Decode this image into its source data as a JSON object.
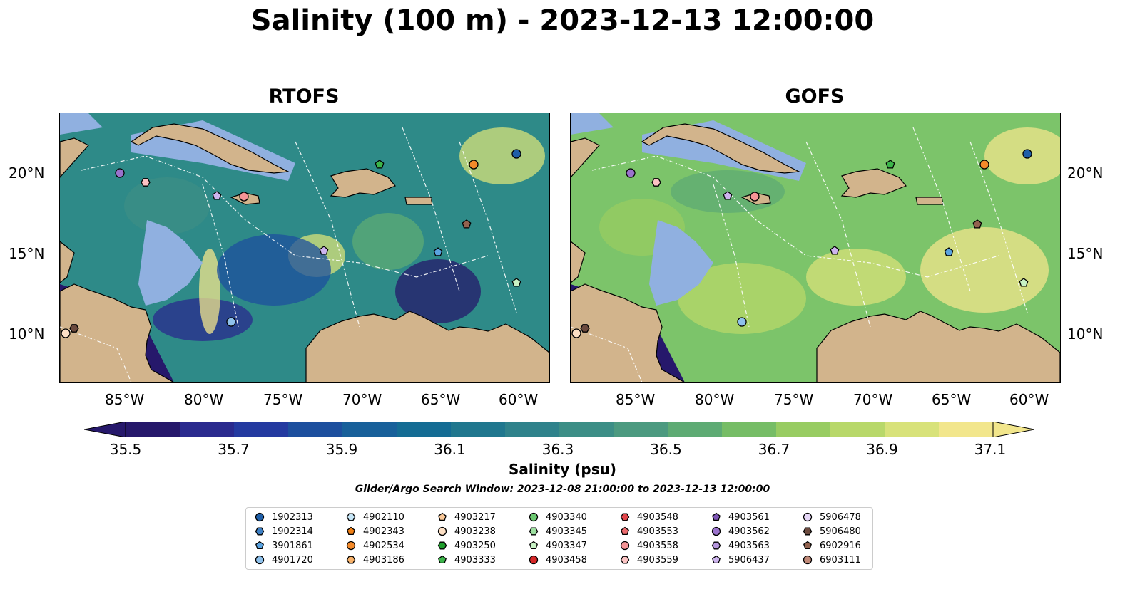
{
  "title": "Salinity (100 m) - 2023-12-13 12:00:00",
  "panels": [
    {
      "title": "RTOFS",
      "bg": "#2e8a88"
    },
    {
      "title": "GOFS",
      "bg": "#7cc46a"
    }
  ],
  "x_ticks": [
    "85°W",
    "80°W",
    "75°W",
    "70°W",
    "65°W",
    "60°W"
  ],
  "y_ticks": [
    "20°N",
    "15°N",
    "10°N"
  ],
  "colorbar": {
    "label": "Salinity (psu)",
    "ticks": [
      "35.5",
      "35.7",
      "35.9",
      "36.1",
      "36.3",
      "36.5",
      "36.7",
      "36.9",
      "37.1"
    ],
    "colors": [
      "#26186b",
      "#2a2a8e",
      "#243aa0",
      "#1d4f9e",
      "#18609a",
      "#146c94",
      "#20778e",
      "#2f828b",
      "#3c8e86",
      "#4c9a80",
      "#5eab74",
      "#76bd66",
      "#98cc62",
      "#b8d86a",
      "#d8e27a",
      "#f2e68c"
    ]
  },
  "search_window": "Glider/Argo Search Window: 2023-12-08 21:00:00 to 2023-12-13 12:00:00",
  "legend": [
    {
      "label": "1902313",
      "color": "#1f5fa8",
      "shape": "circle"
    },
    {
      "label": "1902314",
      "color": "#3d7fc4",
      "shape": "hexagon"
    },
    {
      "label": "3901861",
      "color": "#5aa3e0",
      "shape": "pentagon"
    },
    {
      "label": "4901720",
      "color": "#8ec1ec",
      "shape": "circle"
    },
    {
      "label": "4902110",
      "color": "#c6e6f7",
      "shape": "hexagon"
    },
    {
      "label": "4902343",
      "color": "#f07f14",
      "shape": "pentagon"
    },
    {
      "label": "4902534",
      "color": "#f48a2a",
      "shape": "circle"
    },
    {
      "label": "4903186",
      "color": "#f8b26a",
      "shape": "hexagon"
    },
    {
      "label": "4903217",
      "color": "#fbc999",
      "shape": "pentagon"
    },
    {
      "label": "4903238",
      "color": "#fde0c5",
      "shape": "circle"
    },
    {
      "label": "4903250",
      "color": "#1e9e2c",
      "shape": "hexagon"
    },
    {
      "label": "4903333",
      "color": "#3cb54a",
      "shape": "pentagon"
    },
    {
      "label": "4903340",
      "color": "#6cc971",
      "shape": "circle"
    },
    {
      "label": "4903345",
      "color": "#9de0a0",
      "shape": "hexagon"
    },
    {
      "label": "4903347",
      "color": "#c8f2c4",
      "shape": "pentagon"
    },
    {
      "label": "4903458",
      "color": "#d62728",
      "shape": "circle"
    },
    {
      "label": "4903548",
      "color": "#e0454a",
      "shape": "hexagon"
    },
    {
      "label": "4903553",
      "color": "#ec6a6e",
      "shape": "pentagon"
    },
    {
      "label": "4903558",
      "color": "#f59496",
      "shape": "circle"
    },
    {
      "label": "4903559",
      "color": "#fbc3c3",
      "shape": "hexagon"
    },
    {
      "label": "4903561",
      "color": "#7d55b5",
      "shape": "pentagon"
    },
    {
      "label": "4903562",
      "color": "#9a72cc",
      "shape": "circle"
    },
    {
      "label": "4903563",
      "color": "#b596dd",
      "shape": "hexagon"
    },
    {
      "label": "5906437",
      "color": "#cdb4ee",
      "shape": "pentagon"
    },
    {
      "label": "5906478",
      "color": "#e6d7f7",
      "shape": "circle"
    },
    {
      "label": "5906480",
      "color": "#6b4a3e",
      "shape": "hexagon"
    },
    {
      "label": "6902916",
      "color": "#92624f",
      "shape": "pentagon"
    },
    {
      "label": "6903111",
      "color": "#c08978",
      "shape": "circle"
    }
  ]
}
